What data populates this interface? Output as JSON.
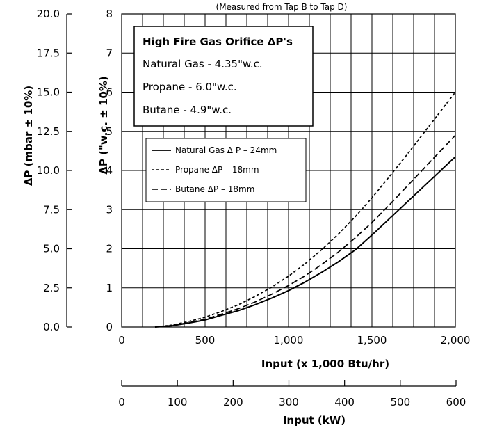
{
  "chart_data": {
    "type": "line",
    "subtitle": "(Measured from Tap B to Tap D)",
    "xlabel": "Input (x 1,000 Btu/hr)",
    "xlim": [
      0,
      2000
    ],
    "x_ticks": [
      "0",
      "500",
      "1,000",
      "1,500",
      "2,000"
    ],
    "ylabel": "ΔP (\"w.c. ± 10%)",
    "ylim": [
      0,
      8
    ],
    "y_ticks": [
      "0",
      "1",
      "2",
      "3",
      "4",
      "5",
      "6",
      "7",
      "8"
    ],
    "ylabel2": "ΔP (mbar ± 10%)",
    "ylim2": [
      0,
      20
    ],
    "y2_ticks": [
      "0.0",
      "2.5",
      "5.0",
      "7.5",
      "10.0",
      "12.5",
      "15.0",
      "17.5",
      "20.0"
    ],
    "xlabel2": "Input (kW)",
    "xlim2": [
      0,
      600
    ],
    "x2_ticks": [
      "0",
      "100",
      "200",
      "300",
      "400",
      "500",
      "600"
    ],
    "grid": true,
    "info_box": {
      "title": "High Fire Gas Orifice ΔP's",
      "lines": [
        "Natural Gas - 4.35\"w.c.",
        "Propane - 6.0\"w.c.",
        "Butane - 4.9\"w.c."
      ]
    },
    "legend_position": "upper-left",
    "series": [
      {
        "name": "Natural Gas Δ P – 24mm",
        "style": "solid",
        "x": [
          200,
          300,
          400,
          500,
          600,
          700,
          800,
          900,
          1000,
          1100,
          1200,
          1300,
          1400,
          1500,
          1600,
          1700,
          1800,
          1900,
          2000
        ],
        "y": [
          0,
          0.03,
          0.1,
          0.18,
          0.3,
          0.42,
          0.57,
          0.74,
          0.93,
          1.15,
          1.4,
          1.67,
          1.97,
          2.35,
          2.75,
          3.15,
          3.55,
          3.95,
          4.35
        ]
      },
      {
        "name": "Propane ΔP – 18mm",
        "style": "dotted",
        "x": [
          200,
          300,
          400,
          500,
          600,
          700,
          800,
          900,
          1000,
          1100,
          1200,
          1300,
          1400,
          1500,
          1600,
          1700,
          1800,
          1900,
          2000
        ],
        "y": [
          0,
          0.05,
          0.14,
          0.25,
          0.4,
          0.57,
          0.78,
          1.02,
          1.3,
          1.62,
          1.98,
          2.38,
          2.82,
          3.3,
          3.82,
          4.35,
          4.9,
          5.45,
          6.0
        ]
      },
      {
        "name": "Butane ΔP – 18mm",
        "style": "dashed",
        "x": [
          200,
          300,
          400,
          500,
          600,
          700,
          800,
          900,
          1000,
          1100,
          1200,
          1300,
          1400,
          1500,
          1600,
          1700,
          1800,
          1900,
          2000
        ],
        "y": [
          0,
          0.04,
          0.11,
          0.2,
          0.33,
          0.47,
          0.64,
          0.84,
          1.06,
          1.31,
          1.6,
          1.92,
          2.28,
          2.67,
          3.1,
          3.55,
          4.0,
          4.45,
          4.9
        ]
      }
    ]
  }
}
